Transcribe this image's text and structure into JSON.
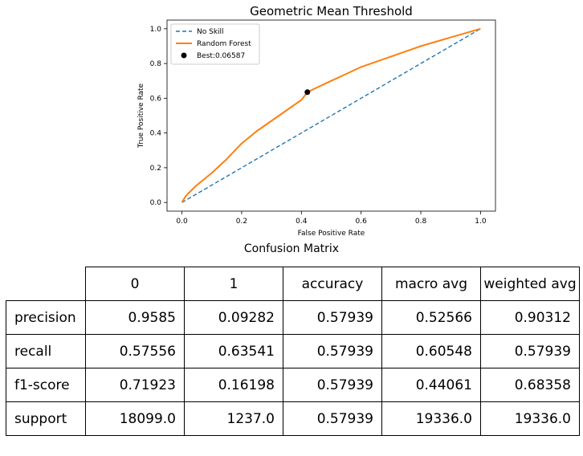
{
  "chart_data": {
    "type": "line",
    "title": "Geometric Mean Threshold",
    "xlabel": "False Positive Rate",
    "ylabel": "True Positive Rate",
    "xlim": [
      -0.05,
      1.05
    ],
    "ylim": [
      -0.05,
      1.05
    ],
    "xticks": [
      0.0,
      0.2,
      0.4,
      0.6,
      0.8,
      1.0
    ],
    "yticks": [
      0.0,
      0.2,
      0.4,
      0.6,
      0.8,
      1.0
    ],
    "tick_labels": [
      "0.0",
      "0.2",
      "0.4",
      "0.6",
      "0.8",
      "1.0"
    ],
    "grid": false,
    "legend_position": "top-left",
    "series": [
      {
        "name": "No Skill",
        "style": "dashed",
        "color": "#1f77b4",
        "x": [
          0,
          1
        ],
        "y": [
          0,
          1
        ]
      },
      {
        "name": "Random Forest",
        "style": "solid",
        "color": "#ff7f0e",
        "x": [
          0,
          0.01,
          0.02,
          0.05,
          0.1,
          0.15,
          0.2,
          0.25,
          0.3,
          0.35,
          0.4,
          0.42,
          0.45,
          0.5,
          0.55,
          0.6,
          0.65,
          0.7,
          0.75,
          0.8,
          0.85,
          0.9,
          0.95,
          1.0
        ],
        "y": [
          0,
          0.03,
          0.05,
          0.1,
          0.17,
          0.25,
          0.34,
          0.41,
          0.47,
          0.53,
          0.59,
          0.635,
          0.66,
          0.7,
          0.74,
          0.78,
          0.81,
          0.84,
          0.87,
          0.9,
          0.925,
          0.95,
          0.975,
          1.0
        ]
      },
      {
        "name": "Best:0.06587",
        "style": "marker",
        "color": "#000000",
        "x": [
          0.42
        ],
        "y": [
          0.635
        ]
      }
    ]
  },
  "table": {
    "title": "Confusion Matrix",
    "columns": [
      "0",
      "1",
      "accuracy",
      "macro avg",
      "weighted avg"
    ],
    "rows": [
      {
        "label": "precision",
        "values": [
          "0.9585",
          "0.09282",
          "0.57939",
          "0.52566",
          "0.90312"
        ]
      },
      {
        "label": "recall",
        "values": [
          "0.57556",
          "0.63541",
          "0.57939",
          "0.60548",
          "0.57939"
        ]
      },
      {
        "label": "f1-score",
        "values": [
          "0.71923",
          "0.16198",
          "0.57939",
          "0.44061",
          "0.68358"
        ]
      },
      {
        "label": "support",
        "values": [
          "18099.0",
          "1237.0",
          "0.57939",
          "19336.0",
          "19336.0"
        ]
      }
    ]
  }
}
